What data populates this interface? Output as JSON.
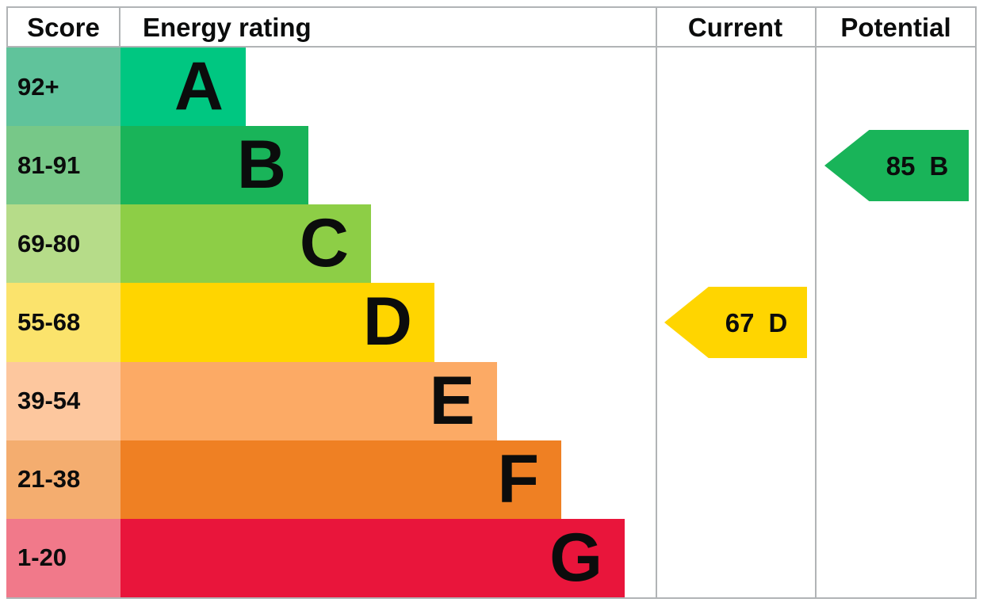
{
  "headers": {
    "score": "Score",
    "energy_rating": "Energy rating",
    "current": "Current",
    "potential": "Potential"
  },
  "chart_data": {
    "type": "bar",
    "orientation": "horizontal",
    "title": "EPC energy efficiency rating chart",
    "bands": [
      {
        "letter": "A",
        "score_range": "92+",
        "bar_color": "#00c781",
        "score_cell_color": "#60c39b"
      },
      {
        "letter": "B",
        "score_range": "81-91",
        "bar_color": "#19b459",
        "score_cell_color": "#77c888"
      },
      {
        "letter": "C",
        "score_range": "69-80",
        "bar_color": "#8dce46",
        "score_cell_color": "#b6dc89"
      },
      {
        "letter": "D",
        "score_range": "55-68",
        "bar_color": "#ffd500",
        "score_cell_color": "#fbe36c"
      },
      {
        "letter": "E",
        "score_range": "39-54",
        "bar_color": "#fcaa65",
        "score_cell_color": "#fdc79e"
      },
      {
        "letter": "F",
        "score_range": "21-38",
        "bar_color": "#ef8023",
        "score_cell_color": "#f4ad6f"
      },
      {
        "letter": "G",
        "score_range": "1-20",
        "bar_color": "#e9153b",
        "score_cell_color": "#f1798a"
      }
    ],
    "current": {
      "value": "67",
      "band": "D",
      "color": "#ffd500"
    },
    "potential": {
      "value": "85",
      "band": "B",
      "color": "#19b459"
    },
    "colors": {
      "border": "#b1b4b6",
      "text": "#0b0c0c",
      "background": "#ffffff"
    }
  }
}
